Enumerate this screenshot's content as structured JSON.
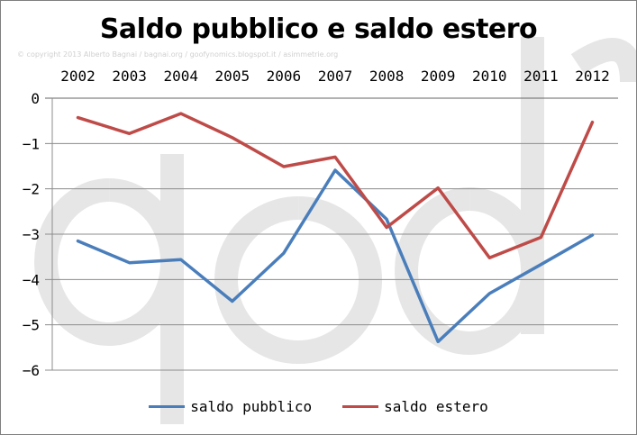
{
  "chart_data": {
    "type": "line",
    "title": "Saldo pubblico e saldo estero",
    "copyright": "© copyright 2013 Alberto Bagnai / bagnai.org / goofynomics.blogspot.it / asimmetrie.org",
    "watermark": "a/simmetrie logo",
    "xlabel": "",
    "ylabel": "",
    "x": [
      "2002",
      "2003",
      "2004",
      "2005",
      "2006",
      "2007",
      "2008",
      "2009",
      "2010",
      "2011",
      "2012"
    ],
    "ylim": [
      -6,
      0
    ],
    "yticks": [
      0,
      -1,
      -2,
      -3,
      -4,
      -5,
      -6
    ],
    "ytick_labels": [
      "0",
      "−1",
      "−2",
      "−3",
      "−4",
      "−5",
      "−6"
    ],
    "x_axis_position": "top",
    "grid": true,
    "legend_position": "bottom",
    "series": [
      {
        "name": "saldo pubblico",
        "color": "#4a7ebb",
        "values": [
          -3.15,
          -3.63,
          -3.56,
          -4.48,
          -3.42,
          -1.59,
          -2.67,
          -5.37,
          -4.31,
          -3.67,
          -3.02
        ]
      },
      {
        "name": "saldo estero",
        "color": "#be4b48",
        "values": [
          -0.43,
          -0.78,
          -0.34,
          -0.87,
          -1.51,
          -1.3,
          -2.85,
          -1.98,
          -3.52,
          -3.07,
          -0.53
        ]
      }
    ]
  }
}
